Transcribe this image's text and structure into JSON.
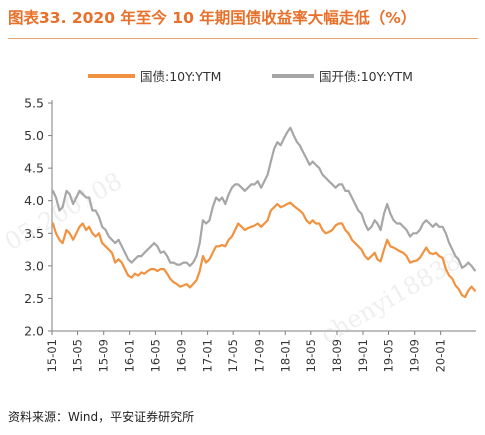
{
  "title": "图表33.  2020 年至今 10 年期国债收益率大幅走低（%）",
  "source": "资料来源：Wind，平安证券研究所",
  "watermarks": [
    "05-200108",
    "chenyi18838"
  ],
  "colors": {
    "gov": "#f0923f",
    "cdb": "#a6a6a6",
    "title": "#e8702a",
    "axis": "#7f7f7f"
  },
  "chart_data": {
    "type": "line",
    "legend_position": "top",
    "grid": false,
    "ylim": [
      2.0,
      5.5
    ],
    "yticks": [
      2.0,
      2.5,
      3.0,
      3.5,
      4.0,
      4.5,
      5.0,
      5.5
    ],
    "ytick_labels": [
      "2.0",
      "2.5",
      "3.0",
      "3.5",
      "4.0",
      "4.5",
      "5.0",
      "5.5"
    ],
    "x_range": [
      "2015-01-01",
      "2020-06-15"
    ],
    "xtick_labels": [
      "15-01",
      "15-05",
      "15-09",
      "16-01",
      "16-05",
      "16-09",
      "17-01",
      "17-05",
      "17-09",
      "18-01",
      "18-05",
      "18-09",
      "19-01",
      "19-05",
      "19-09",
      "20-01"
    ],
    "xtick_dates": [
      "2015-01",
      "2015-05",
      "2015-09",
      "2016-01",
      "2016-05",
      "2016-09",
      "2017-01",
      "2017-05",
      "2017-09",
      "2018-01",
      "2018-05",
      "2018-09",
      "2019-01",
      "2019-05",
      "2019-09",
      "2020-01"
    ],
    "series": [
      {
        "name": "国债:10Y:YTM",
        "color": "#f0923f",
        "points": [
          [
            "2015-01-05",
            3.65
          ],
          [
            "2015-01-20",
            3.5
          ],
          [
            "2015-02-05",
            3.4
          ],
          [
            "2015-02-20",
            3.35
          ],
          [
            "2015-03-10",
            3.55
          ],
          [
            "2015-03-25",
            3.5
          ],
          [
            "2015-04-10",
            3.4
          ],
          [
            "2015-04-25",
            3.5
          ],
          [
            "2015-05-10",
            3.6
          ],
          [
            "2015-05-25",
            3.65
          ],
          [
            "2015-06-10",
            3.55
          ],
          [
            "2015-06-25",
            3.6
          ],
          [
            "2015-07-10",
            3.5
          ],
          [
            "2015-07-25",
            3.45
          ],
          [
            "2015-08-10",
            3.5
          ],
          [
            "2015-08-25",
            3.35
          ],
          [
            "2015-09-10",
            3.3
          ],
          [
            "2015-09-25",
            3.25
          ],
          [
            "2015-10-10",
            3.2
          ],
          [
            "2015-10-25",
            3.05
          ],
          [
            "2015-11-10",
            3.1
          ],
          [
            "2015-11-25",
            3.05
          ],
          [
            "2015-12-10",
            2.95
          ],
          [
            "2015-12-25",
            2.85
          ],
          [
            "2016-01-10",
            2.82
          ],
          [
            "2016-01-25",
            2.88
          ],
          [
            "2016-02-10",
            2.85
          ],
          [
            "2016-02-25",
            2.9
          ],
          [
            "2016-03-10",
            2.88
          ],
          [
            "2016-03-25",
            2.92
          ],
          [
            "2016-04-10",
            2.95
          ],
          [
            "2016-04-25",
            2.95
          ],
          [
            "2016-05-10",
            2.92
          ],
          [
            "2016-05-25",
            2.95
          ],
          [
            "2016-06-10",
            2.95
          ],
          [
            "2016-06-25",
            2.88
          ],
          [
            "2016-07-10",
            2.8
          ],
          [
            "2016-07-25",
            2.75
          ],
          [
            "2016-08-10",
            2.72
          ],
          [
            "2016-08-25",
            2.68
          ],
          [
            "2016-09-10",
            2.7
          ],
          [
            "2016-09-25",
            2.72
          ],
          [
            "2016-10-10",
            2.67
          ],
          [
            "2016-10-25",
            2.72
          ],
          [
            "2016-11-10",
            2.78
          ],
          [
            "2016-11-25",
            2.92
          ],
          [
            "2016-12-10",
            3.15
          ],
          [
            "2016-12-25",
            3.05
          ],
          [
            "2017-01-10",
            3.1
          ],
          [
            "2017-01-25",
            3.2
          ],
          [
            "2017-02-10",
            3.3
          ],
          [
            "2017-02-25",
            3.3
          ],
          [
            "2017-03-10",
            3.32
          ],
          [
            "2017-03-25",
            3.3
          ],
          [
            "2017-04-10",
            3.4
          ],
          [
            "2017-04-25",
            3.45
          ],
          [
            "2017-05-10",
            3.55
          ],
          [
            "2017-05-25",
            3.65
          ],
          [
            "2017-06-10",
            3.6
          ],
          [
            "2017-06-25",
            3.55
          ],
          [
            "2017-07-10",
            3.58
          ],
          [
            "2017-07-25",
            3.6
          ],
          [
            "2017-08-10",
            3.62
          ],
          [
            "2017-08-25",
            3.65
          ],
          [
            "2017-09-10",
            3.6
          ],
          [
            "2017-09-25",
            3.65
          ],
          [
            "2017-10-10",
            3.7
          ],
          [
            "2017-10-25",
            3.85
          ],
          [
            "2017-11-10",
            3.9
          ],
          [
            "2017-11-25",
            3.95
          ],
          [
            "2017-12-10",
            3.9
          ],
          [
            "2017-12-25",
            3.92
          ],
          [
            "2018-01-10",
            3.95
          ],
          [
            "2018-01-25",
            3.97
          ],
          [
            "2018-02-10",
            3.92
          ],
          [
            "2018-02-25",
            3.88
          ],
          [
            "2018-03-10",
            3.85
          ],
          [
            "2018-03-25",
            3.8
          ],
          [
            "2018-04-10",
            3.7
          ],
          [
            "2018-04-25",
            3.65
          ],
          [
            "2018-05-10",
            3.7
          ],
          [
            "2018-05-25",
            3.65
          ],
          [
            "2018-06-10",
            3.65
          ],
          [
            "2018-06-25",
            3.55
          ],
          [
            "2018-07-10",
            3.5
          ],
          [
            "2018-07-25",
            3.52
          ],
          [
            "2018-08-10",
            3.55
          ],
          [
            "2018-08-25",
            3.62
          ],
          [
            "2018-09-10",
            3.65
          ],
          [
            "2018-09-25",
            3.65
          ],
          [
            "2018-10-10",
            3.55
          ],
          [
            "2018-10-25",
            3.5
          ],
          [
            "2018-11-10",
            3.4
          ],
          [
            "2018-11-25",
            3.35
          ],
          [
            "2018-12-10",
            3.3
          ],
          [
            "2018-12-25",
            3.25
          ],
          [
            "2019-01-10",
            3.15
          ],
          [
            "2019-01-25",
            3.1
          ],
          [
            "2019-02-10",
            3.15
          ],
          [
            "2019-02-25",
            3.2
          ],
          [
            "2019-03-10",
            3.1
          ],
          [
            "2019-03-25",
            3.07
          ],
          [
            "2019-04-10",
            3.25
          ],
          [
            "2019-04-25",
            3.4
          ],
          [
            "2019-05-10",
            3.3
          ],
          [
            "2019-05-25",
            3.28
          ],
          [
            "2019-06-10",
            3.25
          ],
          [
            "2019-06-25",
            3.22
          ],
          [
            "2019-07-10",
            3.2
          ],
          [
            "2019-07-25",
            3.15
          ],
          [
            "2019-08-10",
            3.05
          ],
          [
            "2019-08-25",
            3.07
          ],
          [
            "2019-09-10",
            3.08
          ],
          [
            "2019-09-25",
            3.12
          ],
          [
            "2019-10-10",
            3.2
          ],
          [
            "2019-10-25",
            3.28
          ],
          [
            "2019-11-10",
            3.2
          ],
          [
            "2019-11-25",
            3.18
          ],
          [
            "2019-12-10",
            3.2
          ],
          [
            "2019-12-25",
            3.15
          ],
          [
            "2020-01-10",
            3.12
          ],
          [
            "2020-01-25",
            2.95
          ],
          [
            "2020-02-10",
            2.85
          ],
          [
            "2020-02-25",
            2.8
          ],
          [
            "2020-03-10",
            2.7
          ],
          [
            "2020-03-25",
            2.65
          ],
          [
            "2020-04-10",
            2.55
          ],
          [
            "2020-04-25",
            2.52
          ],
          [
            "2020-05-10",
            2.62
          ],
          [
            "2020-05-25",
            2.68
          ],
          [
            "2020-06-10",
            2.62
          ]
        ]
      },
      {
        "name": "国开债:10Y:YTM",
        "color": "#a6a6a6",
        "points": [
          [
            "2015-01-05",
            4.15
          ],
          [
            "2015-01-20",
            4.05
          ],
          [
            "2015-02-05",
            3.85
          ],
          [
            "2015-02-20",
            3.9
          ],
          [
            "2015-03-10",
            4.15
          ],
          [
            "2015-03-25",
            4.1
          ],
          [
            "2015-04-10",
            3.95
          ],
          [
            "2015-04-25",
            4.05
          ],
          [
            "2015-05-10",
            4.15
          ],
          [
            "2015-05-25",
            4.1
          ],
          [
            "2015-06-10",
            4.05
          ],
          [
            "2015-06-25",
            4.05
          ],
          [
            "2015-07-10",
            3.85
          ],
          [
            "2015-07-25",
            3.85
          ],
          [
            "2015-08-10",
            3.75
          ],
          [
            "2015-08-25",
            3.6
          ],
          [
            "2015-09-10",
            3.55
          ],
          [
            "2015-09-25",
            3.45
          ],
          [
            "2015-10-10",
            3.4
          ],
          [
            "2015-10-25",
            3.35
          ],
          [
            "2015-11-10",
            3.4
          ],
          [
            "2015-11-25",
            3.3
          ],
          [
            "2015-12-10",
            3.2
          ],
          [
            "2015-12-25",
            3.1
          ],
          [
            "2016-01-10",
            3.05
          ],
          [
            "2016-01-25",
            3.1
          ],
          [
            "2016-02-10",
            3.15
          ],
          [
            "2016-02-25",
            3.15
          ],
          [
            "2016-03-10",
            3.2
          ],
          [
            "2016-03-25",
            3.25
          ],
          [
            "2016-04-10",
            3.3
          ],
          [
            "2016-04-25",
            3.35
          ],
          [
            "2016-05-10",
            3.3
          ],
          [
            "2016-05-25",
            3.2
          ],
          [
            "2016-06-10",
            3.22
          ],
          [
            "2016-06-25",
            3.15
          ],
          [
            "2016-07-10",
            3.05
          ],
          [
            "2016-07-25",
            3.05
          ],
          [
            "2016-08-10",
            3.02
          ],
          [
            "2016-08-25",
            3.02
          ],
          [
            "2016-09-10",
            3.05
          ],
          [
            "2016-09-25",
            3.05
          ],
          [
            "2016-10-10",
            3.0
          ],
          [
            "2016-10-25",
            3.05
          ],
          [
            "2016-11-10",
            3.15
          ],
          [
            "2016-11-25",
            3.35
          ],
          [
            "2016-12-10",
            3.7
          ],
          [
            "2016-12-25",
            3.65
          ],
          [
            "2017-01-10",
            3.7
          ],
          [
            "2017-01-25",
            3.9
          ],
          [
            "2017-02-10",
            4.05
          ],
          [
            "2017-02-25",
            4.0
          ],
          [
            "2017-03-10",
            4.05
          ],
          [
            "2017-03-25",
            3.95
          ],
          [
            "2017-04-10",
            4.1
          ],
          [
            "2017-04-25",
            4.2
          ],
          [
            "2017-05-10",
            4.25
          ],
          [
            "2017-05-25",
            4.25
          ],
          [
            "2017-06-10",
            4.2
          ],
          [
            "2017-06-25",
            4.15
          ],
          [
            "2017-07-10",
            4.2
          ],
          [
            "2017-07-25",
            4.25
          ],
          [
            "2017-08-10",
            4.25
          ],
          [
            "2017-08-25",
            4.3
          ],
          [
            "2017-09-10",
            4.2
          ],
          [
            "2017-09-25",
            4.3
          ],
          [
            "2017-10-10",
            4.4
          ],
          [
            "2017-10-25",
            4.6
          ],
          [
            "2017-11-10",
            4.8
          ],
          [
            "2017-11-25",
            4.9
          ],
          [
            "2017-12-10",
            4.85
          ],
          [
            "2017-12-25",
            4.95
          ],
          [
            "2018-01-10",
            5.05
          ],
          [
            "2018-01-25",
            5.12
          ],
          [
            "2018-02-10",
            5.0
          ],
          [
            "2018-02-25",
            4.9
          ],
          [
            "2018-03-10",
            4.85
          ],
          [
            "2018-03-25",
            4.75
          ],
          [
            "2018-04-10",
            4.65
          ],
          [
            "2018-04-25",
            4.55
          ],
          [
            "2018-05-10",
            4.6
          ],
          [
            "2018-05-25",
            4.55
          ],
          [
            "2018-06-10",
            4.5
          ],
          [
            "2018-06-25",
            4.4
          ],
          [
            "2018-07-10",
            4.35
          ],
          [
            "2018-07-25",
            4.3
          ],
          [
            "2018-08-10",
            4.25
          ],
          [
            "2018-08-25",
            4.2
          ],
          [
            "2018-09-10",
            4.25
          ],
          [
            "2018-09-25",
            4.25
          ],
          [
            "2018-10-10",
            4.15
          ],
          [
            "2018-10-25",
            4.15
          ],
          [
            "2018-11-10",
            4.05
          ],
          [
            "2018-11-25",
            3.95
          ],
          [
            "2018-12-10",
            3.85
          ],
          [
            "2018-12-25",
            3.8
          ],
          [
            "2019-01-10",
            3.65
          ],
          [
            "2019-01-25",
            3.55
          ],
          [
            "2019-02-10",
            3.6
          ],
          [
            "2019-02-25",
            3.7
          ],
          [
            "2019-03-10",
            3.65
          ],
          [
            "2019-03-25",
            3.55
          ],
          [
            "2019-04-10",
            3.8
          ],
          [
            "2019-04-25",
            3.95
          ],
          [
            "2019-05-10",
            3.8
          ],
          [
            "2019-05-25",
            3.7
          ],
          [
            "2019-06-10",
            3.65
          ],
          [
            "2019-06-25",
            3.65
          ],
          [
            "2019-07-10",
            3.6
          ],
          [
            "2019-07-25",
            3.55
          ],
          [
            "2019-08-10",
            3.45
          ],
          [
            "2019-08-25",
            3.5
          ],
          [
            "2019-09-10",
            3.5
          ],
          [
            "2019-09-25",
            3.55
          ],
          [
            "2019-10-10",
            3.65
          ],
          [
            "2019-10-25",
            3.7
          ],
          [
            "2019-11-10",
            3.65
          ],
          [
            "2019-11-25",
            3.6
          ],
          [
            "2019-12-10",
            3.65
          ],
          [
            "2019-12-25",
            3.6
          ],
          [
            "2020-01-10",
            3.6
          ],
          [
            "2020-01-25",
            3.5
          ],
          [
            "2020-02-10",
            3.35
          ],
          [
            "2020-02-25",
            3.25
          ],
          [
            "2020-03-10",
            3.15
          ],
          [
            "2020-03-25",
            3.1
          ],
          [
            "2020-04-10",
            2.97
          ],
          [
            "2020-04-25",
            3.0
          ],
          [
            "2020-05-10",
            3.05
          ],
          [
            "2020-05-25",
            3.0
          ],
          [
            "2020-06-10",
            2.93
          ]
        ]
      }
    ]
  }
}
